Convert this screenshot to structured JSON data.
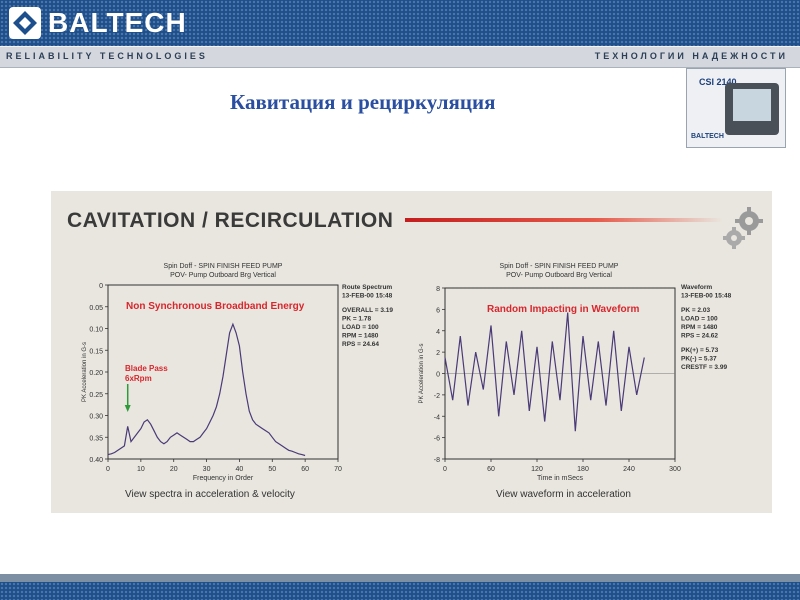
{
  "header": {
    "brand": "BALTECH",
    "tagline_left": "RELIABILITY   TECHNOLOGIES",
    "tagline_right": "ТЕХНОЛОГИИ НАДЕЖНОСТИ"
  },
  "slide": {
    "title": "Кавитация и рециркуляция"
  },
  "device": {
    "model": "CSI 2140",
    "brand": "BALTECH"
  },
  "panel": {
    "title": "CAVITATION / RECIRCULATION",
    "accent_color": "#c41e1e"
  },
  "chart_data": [
    {
      "type": "line",
      "header": [
        "Spin Doff - SPIN FINISH FEED PUMP",
        "POV- Pump Outboard Brg Vertical"
      ],
      "info": [
        "Route Spectrum",
        "13-FEB-00  15:48",
        "OVERALL = 3.19",
        "PK = 1.78",
        "LOAD = 100",
        "RPM = 1480",
        "RPS = 24.64"
      ],
      "annotation": "Non Synchronous Broadband Energy",
      "marker_label": [
        "Blade Pass",
        "6xRpm"
      ],
      "marker_x": 6,
      "ylabel": "PK Acceleration in G-s",
      "xlabel": "Frequency in Order",
      "caption": "View spectra in acceleration & velocity",
      "xlim": [
        0,
        70
      ],
      "ylim": [
        0,
        0.4
      ],
      "xticks": [
        "0",
        "10",
        "20",
        "30",
        "40",
        "50",
        "60",
        "70"
      ],
      "yticks": [
        "0",
        "0.05",
        "0.10",
        "0.15",
        "0.20",
        "0.25",
        "0.30",
        "0.35",
        "0.40"
      ],
      "x": [
        0,
        1,
        2,
        3,
        4,
        5,
        6,
        7,
        8,
        9,
        10,
        11,
        12,
        13,
        14,
        15,
        16,
        17,
        18,
        19,
        20,
        21,
        22,
        23,
        24,
        25,
        26,
        27,
        28,
        29,
        30,
        31,
        32,
        33,
        34,
        35,
        36,
        37,
        38,
        39,
        40,
        41,
        42,
        43,
        44,
        45,
        46,
        47,
        48,
        49,
        50,
        51,
        52,
        53,
        54,
        55,
        56,
        57,
        58,
        59,
        60
      ],
      "values": [
        0.01,
        0.012,
        0.015,
        0.02,
        0.025,
        0.03,
        0.075,
        0.04,
        0.05,
        0.06,
        0.07,
        0.085,
        0.09,
        0.08,
        0.065,
        0.05,
        0.04,
        0.035,
        0.04,
        0.05,
        0.055,
        0.06,
        0.055,
        0.05,
        0.045,
        0.04,
        0.04,
        0.045,
        0.05,
        0.06,
        0.07,
        0.085,
        0.1,
        0.12,
        0.15,
        0.19,
        0.24,
        0.29,
        0.31,
        0.29,
        0.26,
        0.2,
        0.15,
        0.11,
        0.09,
        0.08,
        0.075,
        0.07,
        0.065,
        0.06,
        0.05,
        0.04,
        0.035,
        0.03,
        0.025,
        0.02,
        0.018,
        0.015,
        0.012,
        0.01,
        0.008
      ]
    },
    {
      "type": "line",
      "header": [
        "Spin Doff - SPIN FINISH FEED PUMP",
        "POV- Pump Outboard Brg Vertical"
      ],
      "info": [
        "Waveform",
        "13-FEB-00  15:48",
        "PK = 2.03",
        "LOAD = 100",
        "RPM = 1480",
        "RPS = 24.62",
        "PK(+) = 5.73",
        "PK(-) = 5.37",
        "CRESTF = 3.99"
      ],
      "annotation": "Random Impacting in Waveform",
      "ylabel": "PK Acceleration in G-s",
      "xlabel": "Time in mSecs",
      "caption": "View waveform in acceleration",
      "xlim": [
        0,
        300
      ],
      "ylim": [
        -8,
        8
      ],
      "xticks": [
        "0",
        "60",
        "120",
        "180",
        "240",
        "300"
      ],
      "yticks": [
        "8",
        "6",
        "4",
        "2",
        "0",
        "-2",
        "-4",
        "-6",
        "-8"
      ],
      "x": [
        0,
        10,
        20,
        30,
        40,
        50,
        60,
        70,
        80,
        90,
        100,
        110,
        120,
        130,
        140,
        150,
        160,
        170,
        180,
        190,
        200,
        210,
        220,
        230,
        240,
        250,
        260
      ],
      "values": [
        1.5,
        -2.5,
        3.5,
        -3.0,
        2.0,
        -1.5,
        4.5,
        -4.0,
        3.0,
        -2.0,
        4.0,
        -3.5,
        2.5,
        -4.5,
        3.0,
        -2.5,
        5.7,
        -5.4,
        3.5,
        -2.5,
        3.0,
        -3.0,
        4.0,
        -3.5,
        2.5,
        -2.0,
        1.5
      ]
    }
  ],
  "footer": {}
}
